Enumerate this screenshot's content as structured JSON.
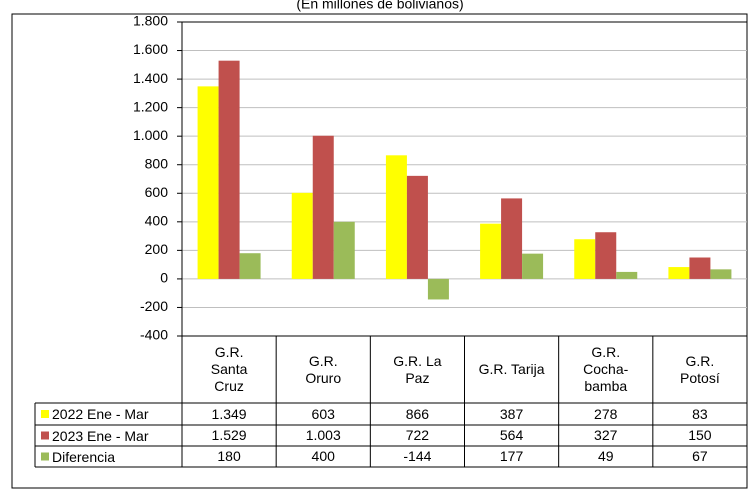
{
  "chart_data": {
    "type": "bar",
    "subtitle": "(En millones de bolivianos)",
    "categories": [
      "G.R. Santa Cruz",
      "G.R. Oruro",
      "G.R. La Paz",
      "G.R. Tarija",
      "G.R. Cocha-bamba",
      "G.R. Potosí"
    ],
    "series": [
      {
        "name": "2022 Ene - Mar",
        "color": "#ffff00",
        "values": [
          1349,
          603,
          866,
          387,
          278,
          83
        ],
        "value_labels": [
          "1.349",
          "603",
          "866",
          "387",
          "278",
          "83"
        ]
      },
      {
        "name": "2023 Ene - Mar",
        "color": "#c0504d",
        "values": [
          1529,
          1003,
          722,
          564,
          327,
          150
        ],
        "value_labels": [
          "1.529",
          "1.003",
          "722",
          "564",
          "327",
          "150"
        ]
      },
      {
        "name": "Diferencia",
        "color": "#9bbb59",
        "values": [
          180,
          400,
          -144,
          177,
          49,
          67
        ]
      }
    ],
    "ylim": [
      -400,
      1800
    ],
    "yticks": [
      -400,
      -200,
      0,
      200,
      400,
      600,
      800,
      {
        "value": 1000,
        "label": "1.000"
      },
      {
        "value": 1200,
        "label": "1.200"
      },
      {
        "value": 1400,
        "label": "1.400"
      },
      {
        "value": 1600,
        "label": "1.600"
      },
      {
        "value": 1800,
        "label": "1.800"
      }
    ],
    "grid": true
  }
}
